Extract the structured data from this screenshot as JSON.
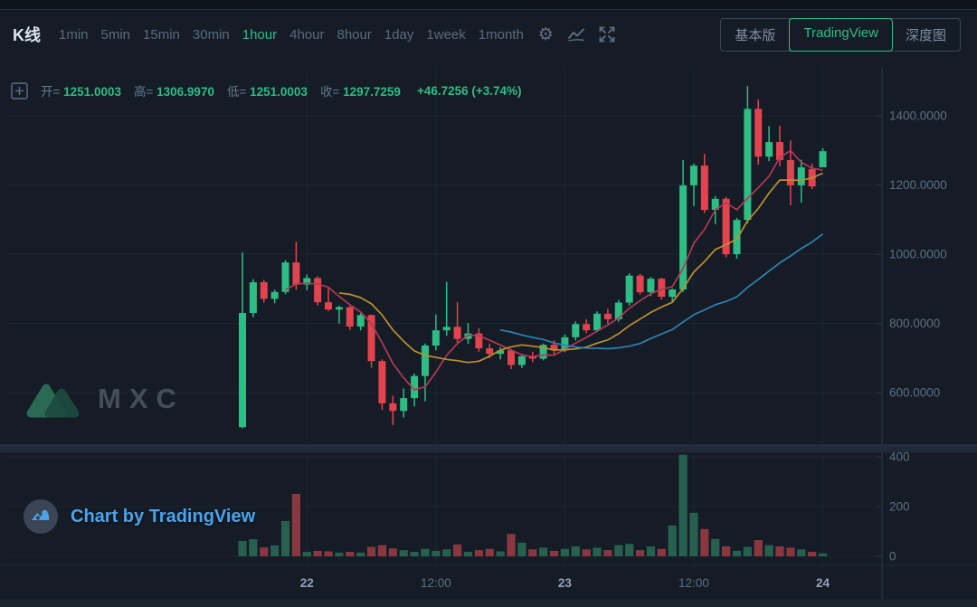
{
  "header": {
    "title": "K线",
    "timeframes": [
      {
        "label": "1min",
        "active": false
      },
      {
        "label": "5min",
        "active": false
      },
      {
        "label": "15min",
        "active": false
      },
      {
        "label": "30min",
        "active": false
      },
      {
        "label": "1hour",
        "active": true
      },
      {
        "label": "4hour",
        "active": false
      },
      {
        "label": "8hour",
        "active": false
      },
      {
        "label": "1day",
        "active": false
      },
      {
        "label": "1week",
        "active": false
      },
      {
        "label": "1month",
        "active": false
      }
    ],
    "icons": {
      "settings_glyph": "⚙"
    },
    "view_buttons": [
      {
        "label": "基本版",
        "active": false
      },
      {
        "label": "TradingView",
        "active": true
      },
      {
        "label": "深度图",
        "active": false
      }
    ]
  },
  "ohlc": {
    "open_label": "开=",
    "open": "1251.0003",
    "high_label": "高=",
    "high": "1306.9970",
    "low_label": "低=",
    "low": "1251.0003",
    "close_label": "收=",
    "close": "1297.7259",
    "change": "+46.7256",
    "change_pct": "(+3.74%)"
  },
  "watermark": {
    "text": "MXC"
  },
  "attribution": {
    "text": "Chart by TradingView"
  },
  "chart_data": {
    "type": "candlestick",
    "interval": "1hour",
    "legend_position": "none",
    "grid": true,
    "price_axis": {
      "ticks": [
        {
          "value": 1400,
          "label": "1400.0000"
        },
        {
          "value": 1200,
          "label": "1200.0000"
        },
        {
          "value": 1000,
          "label": "1000.0000"
        },
        {
          "value": 800,
          "label": "800.0000"
        },
        {
          "value": 600,
          "label": "600.0000"
        }
      ]
    },
    "volume_axis": {
      "ticks": [
        {
          "value": 400,
          "label": "400"
        },
        {
          "value": 200,
          "label": "200"
        },
        {
          "value": 0,
          "label": "0"
        }
      ]
    },
    "time_axis": {
      "ticks": [
        {
          "label": "22",
          "candle_index": 6,
          "bold": true
        },
        {
          "label": "12:00",
          "candle_index": 18,
          "bold": false
        },
        {
          "label": "23",
          "candle_index": 30,
          "bold": true
        },
        {
          "label": "12:00",
          "candle_index": 42,
          "bold": false
        },
        {
          "label": "24",
          "candle_index": 54,
          "bold": true
        }
      ]
    },
    "candles": [
      [
        500,
        1005,
        497,
        830
      ],
      [
        830,
        928,
        818,
        919
      ],
      [
        919,
        926,
        860,
        871
      ],
      [
        871,
        897,
        858,
        891
      ],
      [
        891,
        983,
        884,
        976
      ],
      [
        976,
        1036,
        897,
        912
      ],
      [
        912,
        941,
        896,
        931
      ],
      [
        931,
        936,
        852,
        861
      ],
      [
        861,
        905,
        836,
        840
      ],
      [
        840,
        851,
        800,
        847
      ],
      [
        847,
        850,
        781,
        791
      ],
      [
        791,
        829,
        780,
        824
      ],
      [
        824,
        826,
        672,
        691
      ],
      [
        691,
        696,
        550,
        569
      ],
      [
        569,
        591,
        506,
        547
      ],
      [
        547,
        612,
        528,
        584
      ],
      [
        584,
        655,
        560,
        648
      ],
      [
        648,
        742,
        575,
        736
      ],
      [
        736,
        826,
        722,
        780
      ],
      [
        780,
        920,
        764,
        790
      ],
      [
        790,
        861,
        744,
        755
      ],
      [
        755,
        801,
        741,
        771
      ],
      [
        771,
        786,
        718,
        728
      ],
      [
        728,
        742,
        700,
        712
      ],
      [
        712,
        731,
        696,
        722
      ],
      [
        722,
        726,
        668,
        680
      ],
      [
        680,
        712,
        671,
        705
      ],
      [
        705,
        718,
        688,
        698
      ],
      [
        698,
        742,
        693,
        738
      ],
      [
        738,
        751,
        711,
        722
      ],
      [
        722,
        768,
        717,
        760
      ],
      [
        760,
        806,
        751,
        798
      ],
      [
        798,
        812,
        771,
        780
      ],
      [
        780,
        835,
        775,
        828
      ],
      [
        828,
        842,
        799,
        812
      ],
      [
        812,
        868,
        805,
        860
      ],
      [
        860,
        945,
        852,
        938
      ],
      [
        938,
        944,
        883,
        890
      ],
      [
        890,
        934,
        879,
        929
      ],
      [
        929,
        932,
        869,
        877
      ],
      [
        877,
        901,
        861,
        898
      ],
      [
        898,
        1272,
        890,
        1199
      ],
      [
        1199,
        1262,
        1139,
        1256
      ],
      [
        1256,
        1290,
        1119,
        1128
      ],
      [
        1128,
        1168,
        1087,
        1160
      ],
      [
        1160,
        1166,
        991,
        1000
      ],
      [
        1000,
        1105,
        987,
        1099
      ],
      [
        1099,
        1486,
        1089,
        1420
      ],
      [
        1420,
        1447,
        1259,
        1282
      ],
      [
        1282,
        1370,
        1269,
        1324
      ],
      [
        1324,
        1371,
        1254,
        1272
      ],
      [
        1272,
        1329,
        1141,
        1199
      ],
      [
        1199,
        1273,
        1149,
        1251
      ],
      [
        1246,
        1262,
        1188,
        1196
      ],
      [
        1251.0003,
        1306.997,
        1251.0003,
        1297.7259
      ]
    ],
    "volumes": [
      62,
      69,
      36,
      44,
      142,
      251,
      18,
      22,
      20,
      15,
      18,
      15,
      38,
      45,
      32,
      25,
      18,
      30,
      22,
      28,
      48,
      18,
      25,
      30,
      20,
      90,
      55,
      28,
      35,
      22,
      30,
      40,
      28,
      35,
      25,
      45,
      50,
      25,
      40,
      30,
      124,
      408,
      175,
      110,
      70,
      40,
      22,
      38,
      65,
      45,
      40,
      35,
      28,
      18,
      12
    ],
    "moving_averages": [
      {
        "period": 5,
        "color": "#b23a55"
      },
      {
        "period": 10,
        "color": "#c08f2f"
      },
      {
        "period": 25,
        "color": "#2f81b5"
      }
    ],
    "colors": {
      "up": "#2ebd85",
      "down": "#e2444f",
      "vol_up": "#26604e",
      "vol_down": "#8a3742",
      "grid": "rgba(130,150,180,0.08)",
      "axis_line": "#2b3747",
      "label": "#5d6e84",
      "label_bold": "#93a2b6"
    }
  }
}
